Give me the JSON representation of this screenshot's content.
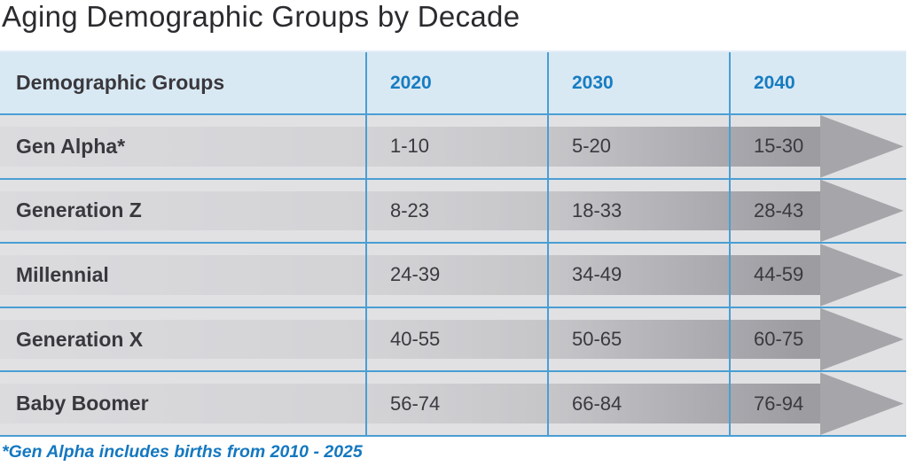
{
  "title": "Aging Demographic Groups by Decade",
  "table": {
    "columns": [
      "Demographic Groups",
      "2020",
      "2030",
      "2040"
    ],
    "rows": [
      {
        "label": "Gen Alpha*",
        "values": [
          "1-10",
          "5-20",
          "15-30"
        ]
      },
      {
        "label": "Generation Z",
        "values": [
          "8-23",
          "18-33",
          "28-43"
        ]
      },
      {
        "label": "Millennial",
        "values": [
          "24-39",
          "34-49",
          "44-59"
        ]
      },
      {
        "label": "Generation X",
        "values": [
          "40-55",
          "50-65",
          "60-75"
        ]
      },
      {
        "label": "Baby Boomer",
        "values": [
          "56-74",
          "66-84",
          "76-94"
        ]
      }
    ]
  },
  "footnote": "*Gen Alpha includes births from 2010 - 2025",
  "icons": {
    "row_arrow": "arrow-right"
  },
  "colors": {
    "header_bg": "#d9e9f4",
    "header_text_blue": "#177cc1",
    "grid_line_blue": "#4a9ed3",
    "row_bg": "#e1e1e3",
    "arrow_gradient_start": "#dbdbde",
    "arrow_gradient_end": "#9c9ca1",
    "arrow_head": "#a6a6aa",
    "title_text": "#2b2a2e",
    "row_text": "#3a393e",
    "footnote_blue": "#1478c0"
  },
  "chart_data": {
    "type": "table",
    "title": "Aging Demographic Groups by Decade",
    "columns": [
      "Demographic Groups",
      "2020",
      "2030",
      "2040"
    ],
    "rows": [
      [
        "Gen Alpha*",
        "1-10",
        "5-20",
        "15-30"
      ],
      [
        "Generation Z",
        "8-23",
        "18-33",
        "28-43"
      ],
      [
        "Millennial",
        "24-39",
        "34-49",
        "44-59"
      ],
      [
        "Generation X",
        "40-55",
        "50-65",
        "60-75"
      ],
      [
        "Baby Boomer",
        "56-74",
        "66-84",
        "76-94"
      ]
    ],
    "footnote": "*Gen Alpha includes births from 2010 - 2025",
    "notes": "Each row is drawn as a rightward-pointing gray gradient arrow indicating aging across decades"
  }
}
